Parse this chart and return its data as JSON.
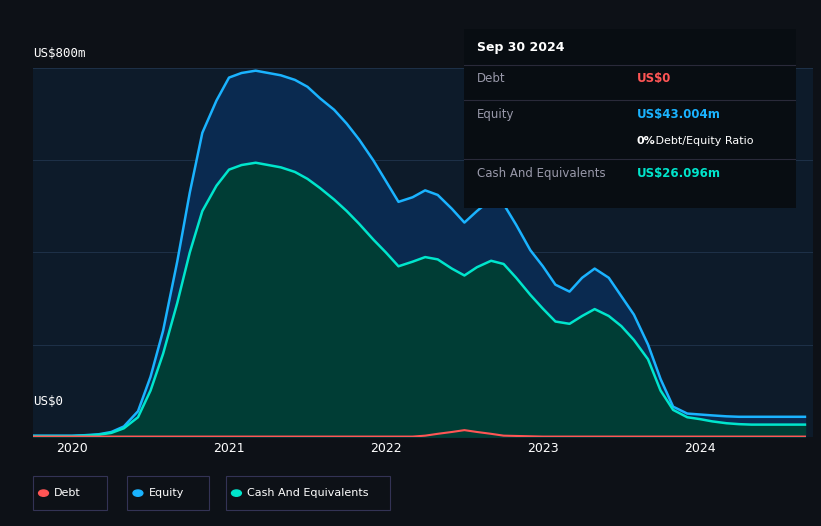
{
  "bg_color": "#0d1117",
  "plot_bg_color": "#0d1b2a",
  "grid_color": "#253a55",
  "title_box": {
    "date": "Sep 30 2024",
    "debt_label": "Debt",
    "debt_value": "US$0",
    "equity_label": "Equity",
    "equity_value": "US$43.004m",
    "ratio_value": "0% Debt/Equity Ratio",
    "cash_label": "Cash And Equivalents",
    "cash_value": "US$26.096m"
  },
  "ylabel_top": "US$800m",
  "ylabel_bottom": "US$0",
  "x_labels": [
    "2020",
    "2021",
    "2022",
    "2023",
    "2024"
  ],
  "x_ticks": [
    2020,
    2021,
    2022,
    2023,
    2024
  ],
  "equity_color": "#1ab3ff",
  "equity_fill": "#0a2a50",
  "cash_color": "#00e5cc",
  "cash_fill": "#003d35",
  "debt_color": "#ff5555",
  "legend": [
    {
      "label": "Debt",
      "color": "#ff5555"
    },
    {
      "label": "Equity",
      "color": "#1ab3ff"
    },
    {
      "label": "Cash And Equivalents",
      "color": "#00e5cc"
    }
  ],
  "equity_x": [
    2019.75,
    2019.85,
    2019.95,
    2020.0,
    2020.08,
    2020.17,
    2020.25,
    2020.33,
    2020.42,
    2020.5,
    2020.58,
    2020.67,
    2020.75,
    2020.83,
    2020.92,
    2021.0,
    2021.08,
    2021.17,
    2021.25,
    2021.33,
    2021.42,
    2021.5,
    2021.58,
    2021.67,
    2021.75,
    2021.83,
    2021.92,
    2022.0,
    2022.08,
    2022.17,
    2022.25,
    2022.33,
    2022.42,
    2022.5,
    2022.58,
    2022.67,
    2022.75,
    2022.83,
    2022.92,
    2023.0,
    2023.08,
    2023.17,
    2023.25,
    2023.33,
    2023.42,
    2023.5,
    2023.58,
    2023.67,
    2023.75,
    2023.83,
    2023.92,
    2024.0,
    2024.08,
    2024.17,
    2024.25,
    2024.33,
    2024.42,
    2024.5,
    2024.58,
    2024.67
  ],
  "equity_y": [
    2,
    2,
    2,
    2,
    3,
    5,
    10,
    22,
    55,
    130,
    230,
    380,
    530,
    660,
    730,
    780,
    790,
    795,
    790,
    785,
    775,
    760,
    735,
    710,
    680,
    645,
    600,
    555,
    510,
    520,
    535,
    525,
    495,
    465,
    490,
    515,
    505,
    460,
    405,
    370,
    330,
    315,
    345,
    365,
    345,
    305,
    265,
    200,
    125,
    65,
    50,
    48,
    46,
    44,
    43,
    43,
    43,
    43,
    43,
    43
  ],
  "cash_x": [
    2019.75,
    2019.85,
    2019.95,
    2020.0,
    2020.08,
    2020.17,
    2020.25,
    2020.33,
    2020.42,
    2020.5,
    2020.58,
    2020.67,
    2020.75,
    2020.83,
    2020.92,
    2021.0,
    2021.08,
    2021.17,
    2021.25,
    2021.33,
    2021.42,
    2021.5,
    2021.58,
    2021.67,
    2021.75,
    2021.83,
    2021.92,
    2022.0,
    2022.08,
    2022.17,
    2022.25,
    2022.33,
    2022.42,
    2022.5,
    2022.58,
    2022.67,
    2022.75,
    2022.83,
    2022.92,
    2023.0,
    2023.08,
    2023.17,
    2023.25,
    2023.33,
    2023.42,
    2023.5,
    2023.58,
    2023.67,
    2023.75,
    2023.83,
    2023.92,
    2024.0,
    2024.08,
    2024.17,
    2024.25,
    2024.33,
    2024.42,
    2024.5,
    2024.58,
    2024.67
  ],
  "cash_y": [
    1,
    1,
    1,
    1,
    2,
    4,
    8,
    18,
    42,
    100,
    180,
    290,
    400,
    490,
    545,
    580,
    590,
    595,
    590,
    585,
    575,
    560,
    540,
    515,
    490,
    462,
    428,
    400,
    370,
    380,
    390,
    385,
    365,
    350,
    368,
    382,
    375,
    345,
    308,
    278,
    250,
    245,
    262,
    277,
    262,
    240,
    210,
    168,
    100,
    58,
    42,
    38,
    33,
    29,
    27,
    26,
    26,
    26,
    26,
    26
  ],
  "debt_x": [
    2019.75,
    2020.0,
    2020.5,
    2021.0,
    2021.5,
    2022.0,
    2022.17,
    2022.25,
    2022.33,
    2022.42,
    2022.5,
    2022.58,
    2022.67,
    2022.75,
    2023.0,
    2023.5,
    2024.0,
    2024.5,
    2024.67
  ],
  "debt_y": [
    0,
    0,
    0,
    0,
    0,
    0,
    0,
    2,
    6,
    10,
    14,
    10,
    6,
    2,
    0,
    0,
    0,
    0,
    0
  ],
  "ylim": [
    0,
    800
  ],
  "xlim": [
    2019.75,
    2024.72
  ]
}
